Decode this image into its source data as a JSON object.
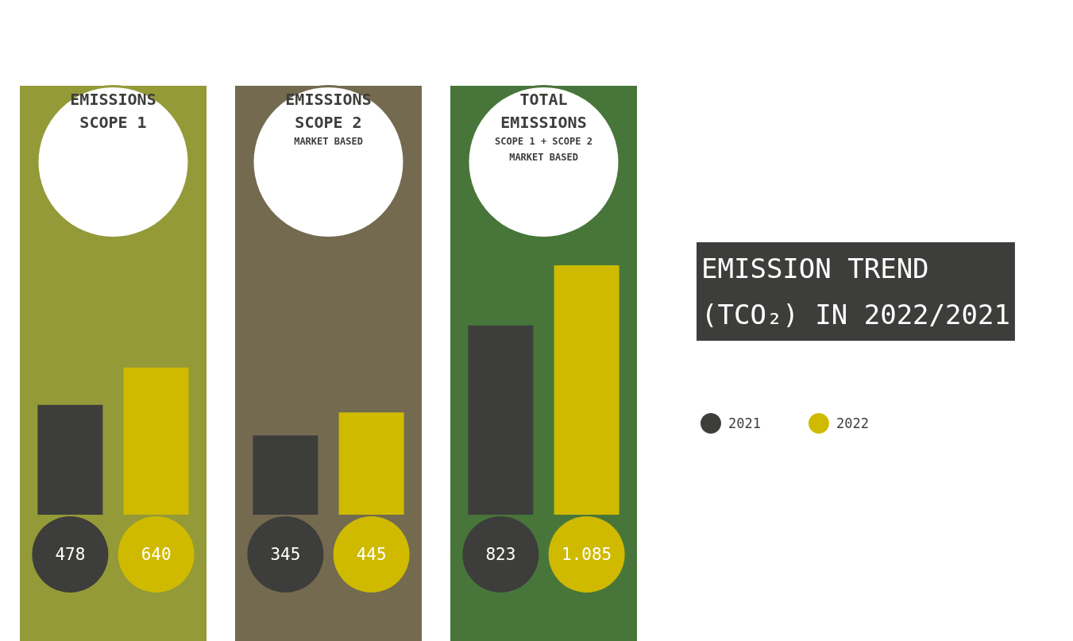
{
  "chart_data": {
    "type": "bar",
    "title": "EMISSION TREND\n(TCO₂) IN 2022/2021",
    "categories": [
      "EMISSIONS\nSCOPE 1",
      "EMISSIONS\nSCOPE 2\nMARKET BASED",
      "TOTAL\nEMISSIONS\nSCOPE 1 + SCOPE 2\nMARKET BASED"
    ],
    "series": [
      {
        "name": "2021",
        "color": "#3d3d3b",
        "values": [
          478,
          345,
          823
        ],
        "value_labels": [
          "478",
          "345",
          "823"
        ]
      },
      {
        "name": "2022",
        "color": "#cfba00",
        "values": [
          640,
          445,
          1085
        ],
        "value_labels": [
          "640",
          "445",
          "1.085"
        ]
      }
    ],
    "bands": [
      {
        "axis": "x",
        "from": "EMISSIONS\nSCOPE 1",
        "to": "EMISSIONS\nSCOPE 1",
        "color": "#939a37"
      },
      {
        "axis": "x",
        "from": "EMISSIONS\nSCOPE 2\nMARKET BASED",
        "to": "EMISSIONS\nSCOPE 2\nMARKET BASED",
        "color": "#736a50"
      },
      {
        "axis": "x",
        "from": "TOTAL\nEMISSIONS\nSCOPE 1 + SCOPE 2\nMARKET BASED",
        "to": "TOTAL\nEMISSIONS\nSCOPE 1 + SCOPE 2\nMARKET BASED",
        "color": "#48763a"
      }
    ],
    "legend": "right"
  }
}
